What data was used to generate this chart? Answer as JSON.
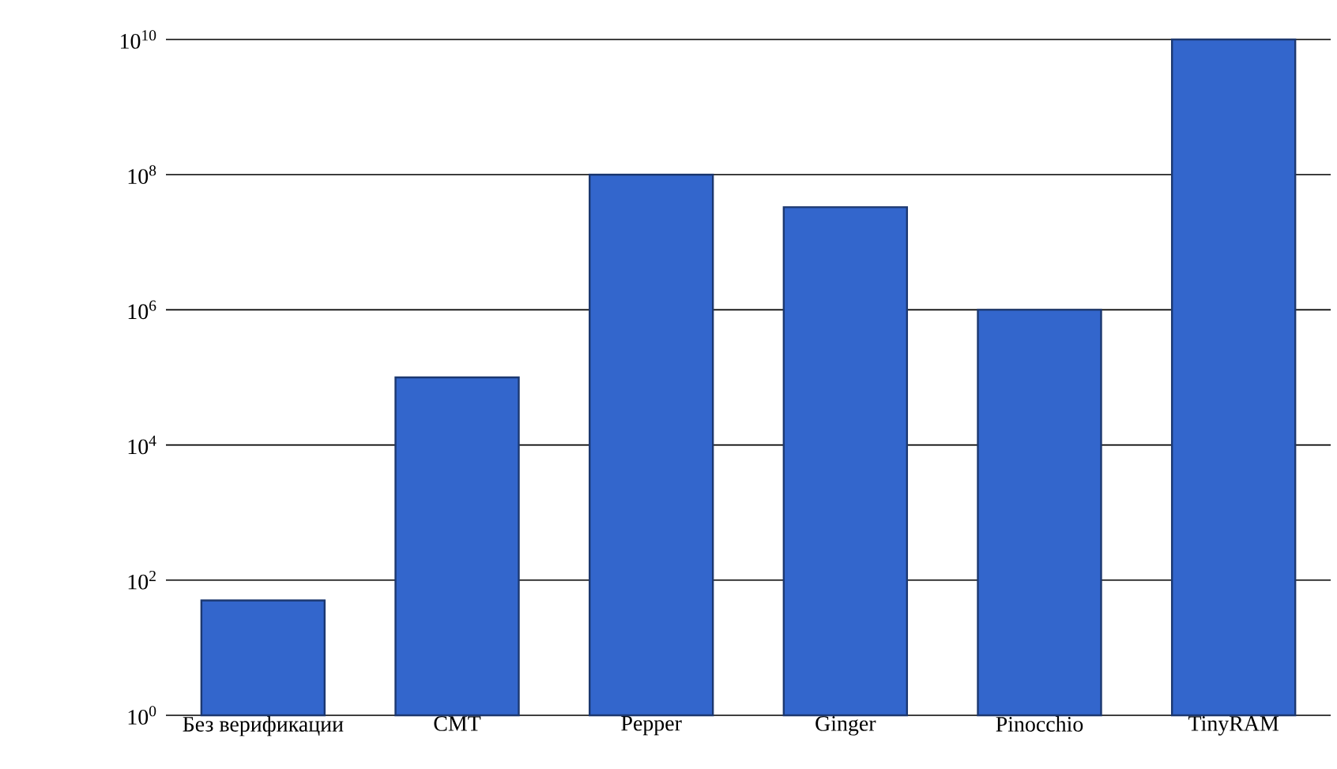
{
  "chart_data": {
    "type": "bar",
    "categories": [
      "Без верификации",
      "CMT",
      "Pepper",
      "Ginger",
      "Pinocchio",
      "TinyRAM"
    ],
    "values": [
      50,
      100000,
      100000000,
      33000000,
      1000000,
      10000000000
    ],
    "color": "#3366cc",
    "log": "y",
    "ylim": [
      1,
      10000000000
    ],
    "yticks": [
      {
        "value": 1,
        "label": "10$^{0}$"
      },
      {
        "value": 100,
        "label": "10$^{2}$"
      },
      {
        "value": 10000,
        "label": "10$^{4}$"
      },
      {
        "value": 1000000,
        "label": "10$^{6}$"
      },
      {
        "value": 100000000,
        "label": "10$^{8}$"
      },
      {
        "value": 10000000000,
        "label": "10$^{10}$"
      }
    ],
    "grid": "y"
  }
}
